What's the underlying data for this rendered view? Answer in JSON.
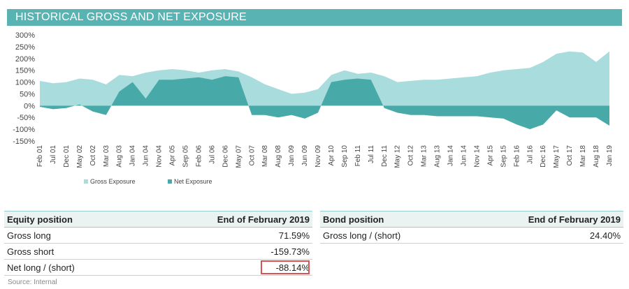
{
  "header": {
    "title": "HISTORICAL GROSS AND NET EXPOSURE"
  },
  "colors": {
    "header": "#5ab3b3",
    "gross": "#a9dcdc",
    "net": "#47aaa8",
    "highlight": "#d9534f"
  },
  "chart_data": {
    "type": "area",
    "xlabel": "",
    "ylabel": "",
    "ylim": [
      -150,
      300
    ],
    "yticks": [
      "300%",
      "250%",
      "200%",
      "150%",
      "100%",
      "50%",
      "0%",
      "-50%",
      "-100%",
      "-150%"
    ],
    "xticks": [
      "Feb 01",
      "Jul 01",
      "Dec 01",
      "May 02",
      "Oct 02",
      "Mar 03",
      "Aug 03",
      "Jan 04",
      "Jun 04",
      "Nov 04",
      "Apr 05",
      "Sep 05",
      "Feb 06",
      "Jul 06",
      "Dec 06",
      "May 07",
      "Oct 07",
      "Mar 08",
      "Aug 08",
      "Jan 09",
      "Jun 09",
      "Nov 09",
      "Apr 10",
      "Sep 10",
      "Feb 11",
      "Jul 11",
      "Dec 11",
      "May 12",
      "Oct 12",
      "Mar 13",
      "Aug 13",
      "Jan 14",
      "Jun 14",
      "Nov 14",
      "Apr 15",
      "Sep 15",
      "Feb 16",
      "Jul 16",
      "Dec 16",
      "May 17",
      "Oct 17",
      "Mar 18",
      "Aug 18",
      "Jan 19"
    ],
    "x": [
      "Feb 01",
      "Jul 01",
      "Dec 01",
      "May 02",
      "Oct 02",
      "Mar 03",
      "Aug 03",
      "Jan 04",
      "Jun 04",
      "Nov 04",
      "Apr 05",
      "Sep 05",
      "Feb 06",
      "Jul 06",
      "Dec 06",
      "May 07",
      "Oct 07",
      "Mar 08",
      "Aug 08",
      "Jan 09",
      "Jun 09",
      "Nov 09",
      "Apr 10",
      "Sep 10",
      "Feb 11",
      "Jul 11",
      "Dec 11",
      "May 12",
      "Oct 12",
      "Mar 13",
      "Aug 13",
      "Jan 14",
      "Jun 14",
      "Nov 14",
      "Apr 15",
      "Sep 15",
      "Feb 16",
      "Jul 16",
      "Dec 16",
      "May 17",
      "Oct 17",
      "Mar 18",
      "Aug 18",
      "Jan 19"
    ],
    "series": [
      {
        "name": "Gross Exposure",
        "values": [
          105,
          95,
          100,
          115,
          110,
          90,
          130,
          125,
          140,
          150,
          155,
          150,
          140,
          150,
          155,
          145,
          120,
          90,
          70,
          50,
          55,
          70,
          130,
          150,
          135,
          140,
          125,
          100,
          105,
          110,
          110,
          115,
          120,
          125,
          140,
          150,
          155,
          160,
          185,
          220,
          230,
          225,
          185,
          230
        ]
      },
      {
        "name": "Net Exposure",
        "values": [
          -5,
          -15,
          -10,
          5,
          -25,
          -40,
          60,
          100,
          30,
          110,
          110,
          115,
          120,
          110,
          125,
          120,
          -40,
          -40,
          -50,
          -40,
          -55,
          -30,
          100,
          110,
          115,
          110,
          -10,
          -30,
          -40,
          -40,
          -45,
          -45,
          -45,
          -45,
          -50,
          -55,
          -80,
          -100,
          -80,
          -20,
          -50,
          -50,
          -50,
          -85
        ]
      }
    ],
    "legend_position": "bottom-left"
  },
  "equity": {
    "header": [
      "Equity position",
      "End of February 2019"
    ],
    "rows": [
      [
        "Gross long",
        "71.59%"
      ],
      [
        "Gross short",
        "-159.73%"
      ],
      [
        "Net long / (short)",
        "-88.14%"
      ]
    ]
  },
  "bond": {
    "header": [
      "Bond position",
      "End of February 2019"
    ],
    "rows": [
      [
        "Gross long / (short)",
        "24.40%"
      ]
    ]
  },
  "footer": {
    "source": "Source: Internal"
  }
}
